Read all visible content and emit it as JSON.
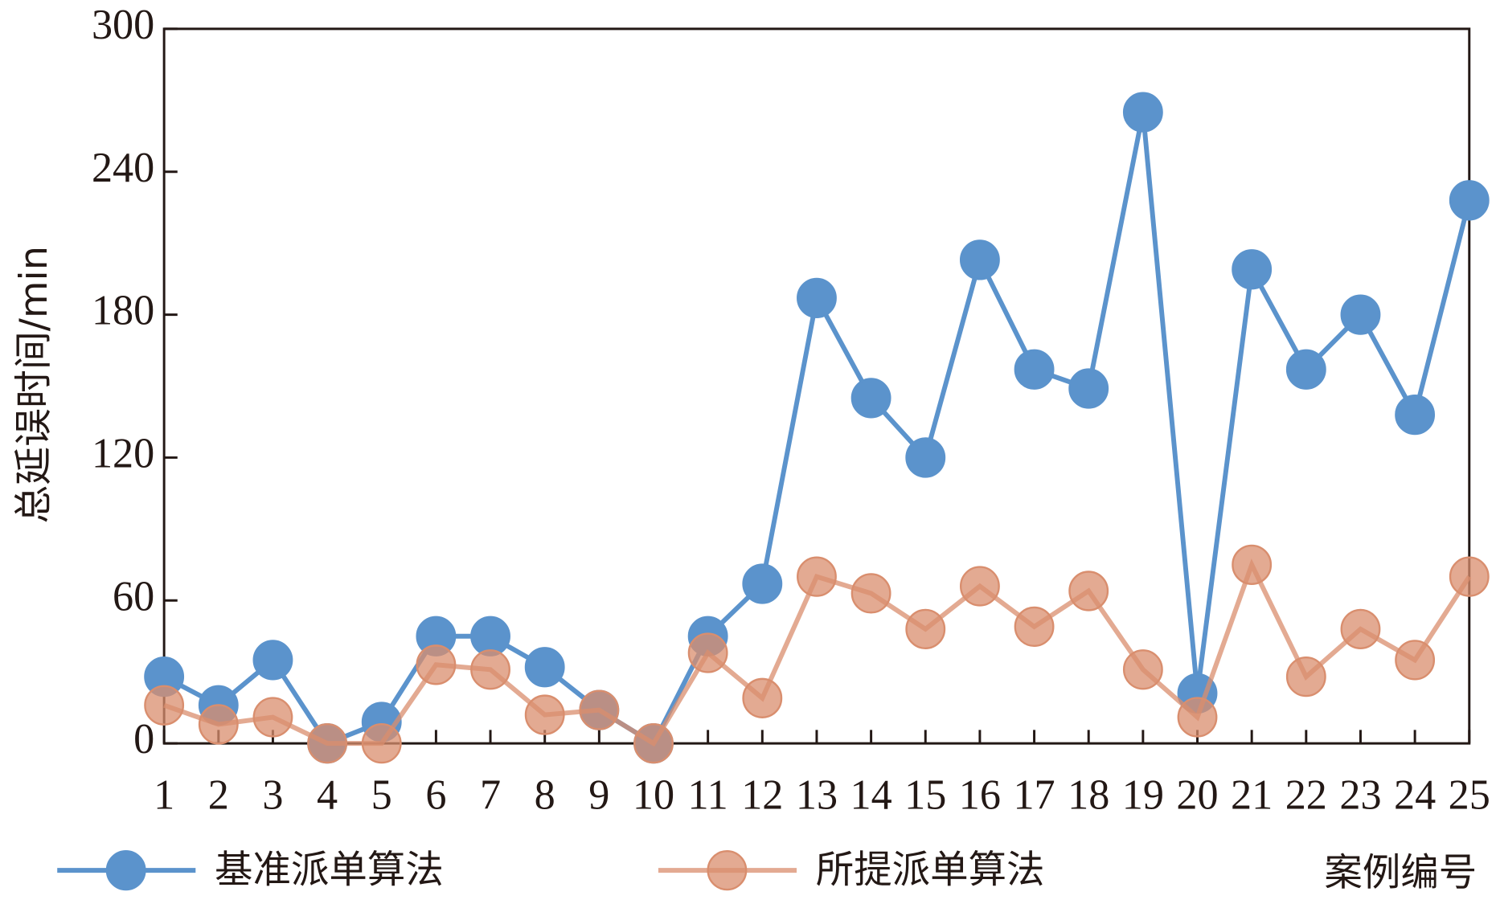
{
  "chart_data": {
    "type": "line",
    "x_label": "案例编号",
    "y_label": "总延误时间/min",
    "x": [
      1,
      2,
      3,
      4,
      5,
      6,
      7,
      8,
      9,
      10,
      11,
      12,
      13,
      14,
      15,
      16,
      17,
      18,
      19,
      20,
      21,
      22,
      23,
      24,
      25
    ],
    "xlim": [
      1,
      25
    ],
    "xticks": [
      1,
      2,
      3,
      4,
      5,
      6,
      7,
      8,
      9,
      10,
      11,
      12,
      13,
      14,
      15,
      16,
      17,
      18,
      19,
      20,
      21,
      22,
      23,
      24,
      25
    ],
    "ylim": [
      0,
      300
    ],
    "yticks": [
      0,
      60,
      120,
      180,
      240,
      300
    ],
    "series": [
      {
        "name": "基准派单算法",
        "color": "#5b93cc",
        "values": [
          28,
          16,
          35,
          0,
          9,
          45,
          45,
          32,
          14,
          0,
          45,
          67,
          187,
          145,
          120,
          203,
          157,
          149,
          265,
          21,
          199,
          157,
          180,
          138,
          228
        ]
      },
      {
        "name": "所提派单算法",
        "color": "#d98e6e",
        "values": [
          16,
          8,
          11,
          0,
          0,
          33,
          31,
          12,
          14,
          0,
          38,
          19,
          70,
          63,
          48,
          66,
          49,
          64,
          31,
          11,
          75,
          28,
          48,
          35,
          70
        ]
      }
    ]
  }
}
